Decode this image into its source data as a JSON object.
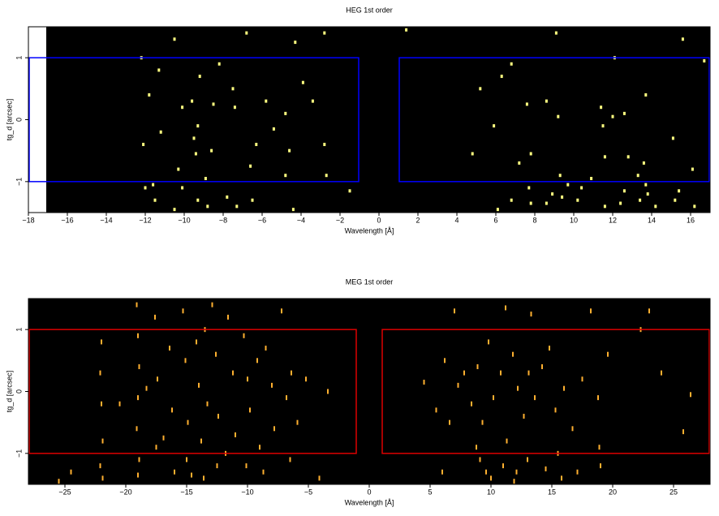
{
  "chart_data": [
    {
      "type": "scatter",
      "title": "HEG 1st order",
      "x_label": "Wavelength [Å]",
      "y_label": "tg_d [arcsec]",
      "xlim": [
        -18,
        17
      ],
      "ylim": [
        -1.5,
        1.5
      ],
      "xticks": [
        {
          "value": -18,
          "label": "−18"
        },
        {
          "value": -16,
          "label": "−16"
        },
        {
          "value": -14,
          "label": "−14"
        },
        {
          "value": -12,
          "label": "−12"
        },
        {
          "value": -10,
          "label": "−10"
        },
        {
          "value": -8,
          "label": "−8"
        },
        {
          "value": -6,
          "label": "−6"
        },
        {
          "value": -4,
          "label": "−4"
        },
        {
          "value": -2,
          "label": "−2"
        },
        0,
        2,
        4,
        6,
        8,
        10,
        12,
        14,
        16
      ],
      "yticks": [
        {
          "value": -1,
          "label": "−1"
        },
        0,
        1
      ],
      "box_color": "#0000ff",
      "boxes": [
        {
          "x": [
            -18,
            -1
          ],
          "y": [
            -1,
            1
          ]
        },
        {
          "x": [
            1,
            17
          ],
          "y": [
            -1,
            1
          ]
        }
      ],
      "series": [
        {
          "color": "#ffff80",
          "x": [
            -10.5,
            -6.8,
            -4.3,
            -2.8,
            -12.2,
            -8.2,
            -11.3,
            -9.2,
            -3.9,
            -7.5,
            -11.8,
            -9.6,
            -10.1,
            -5.8,
            -8.5,
            -3.4,
            -7.4,
            -4.8,
            -9.3,
            -11.2,
            -5.4,
            -9.5,
            -6.3,
            -12.1,
            -8.6,
            -4.6,
            -2.8,
            -9.4,
            -10.3,
            -6.6,
            -4.8,
            -2.7,
            -11.6,
            -10.1,
            -8.9,
            -1.5,
            -11.5,
            -9.3,
            -7.3,
            -4.4,
            -10.5,
            -8.8,
            -6.5,
            -12.0,
            -7.8,
            1.4,
            9.1,
            15.6,
            12.1,
            16.7,
            6.8,
            5.2,
            6.3,
            7.6,
            8.6,
            11.4,
            12.6,
            13.7,
            5.9,
            12.0,
            9.2,
            11.5,
            15.1,
            4.8,
            7.8,
            12.8,
            11.6,
            13.6,
            16.1,
            7.2,
            9.3,
            10.9,
            13.3,
            7.7,
            9.7,
            10.4,
            12.6,
            13.8,
            6.8,
            7.8,
            8.6,
            9.4,
            10.2,
            11.6,
            12.4,
            13.4,
            14.2,
            15.2,
            16.2,
            6.1,
            13.7,
            15.4,
            8.9
          ],
          "y": [
            1.3,
            1.4,
            1.25,
            1.4,
            1.0,
            0.9,
            0.8,
            0.7,
            0.6,
            0.5,
            0.4,
            0.3,
            0.2,
            0.3,
            0.25,
            0.3,
            0.2,
            0.1,
            -0.1,
            -0.2,
            -0.15,
            -0.3,
            -0.4,
            -0.4,
            -0.5,
            -0.5,
            -0.4,
            -0.55,
            -0.8,
            -0.75,
            -0.9,
            -0.9,
            -1.05,
            -1.1,
            -0.95,
            -1.15,
            -1.3,
            -1.3,
            -1.4,
            -1.45,
            -1.45,
            -1.4,
            -1.3,
            -1.1,
            -1.25,
            1.45,
            1.4,
            1.3,
            1.0,
            0.95,
            0.9,
            0.5,
            0.7,
            0.25,
            0.3,
            0.2,
            0.1,
            0.4,
            -0.1,
            0.05,
            0.05,
            -0.1,
            -0.3,
            -0.55,
            -0.55,
            -0.6,
            -0.6,
            -0.7,
            -0.8,
            -0.7,
            -0.9,
            -0.95,
            -0.9,
            -1.1,
            -1.05,
            -1.1,
            -1.15,
            -1.2,
            -1.3,
            -1.35,
            -1.35,
            -1.25,
            -1.3,
            -1.4,
            -1.35,
            -1.3,
            -1.4,
            -1.3,
            -1.4,
            -1.45,
            -1.05,
            -1.15,
            -1.2
          ]
        }
      ]
    },
    {
      "type": "scatter",
      "title": "MEG 1st order",
      "x_label": "Wavelength [Å]",
      "y_label": "tg_d [arcsec]",
      "xlim": [
        -28,
        28
      ],
      "ylim": [
        -1.5,
        1.5
      ],
      "xticks": [
        {
          "value": -25,
          "label": "−25"
        },
        {
          "value": -20,
          "label": "−20"
        },
        {
          "value": -15,
          "label": "−15"
        },
        {
          "value": -10,
          "label": "−10"
        },
        {
          "value": -5,
          "label": "−5"
        },
        0,
        5,
        10,
        15,
        20,
        25
      ],
      "yticks": [
        {
          "value": -1,
          "label": "−1"
        },
        0,
        1
      ],
      "box_color": "#dd0000",
      "boxes": [
        {
          "x": [
            -28,
            -1
          ],
          "y": [
            -1,
            1
          ]
        },
        {
          "x": [
            1,
            28
          ],
          "y": [
            -1,
            1
          ]
        }
      ],
      "series": [
        {
          "color": "#ffb030",
          "x": [
            -22.0,
            -22.1,
            -22.0,
            -21.9,
            -22.1,
            -21.9,
            -19.1,
            -19.0,
            -18.9,
            -19.0,
            -19.1,
            -18.9,
            -19.0,
            -20.5,
            -17.6,
            -17.4,
            -17.5,
            -16.4,
            -16.2,
            -16.0,
            -15.3,
            -15.1,
            -14.9,
            -15.0,
            -14.2,
            -14.0,
            -13.8,
            -13.5,
            -13.3,
            -13.6,
            -12.6,
            -12.4,
            -12.5,
            -11.6,
            -11.2,
            -11.0,
            -10.3,
            -10.0,
            -9.8,
            -10.1,
            -9.2,
            -9.0,
            -8.5,
            -8.0,
            -7.8,
            -7.2,
            -6.8,
            -6.4,
            -6.5,
            -5.9,
            -5.2,
            -4.1,
            -3.4,
            -24.5,
            -25.5,
            -18.3,
            -11.8,
            -14.6,
            -8.7,
            -12.9,
            -16.9,
            7.0,
            11.2,
            13.3,
            18.2,
            6.2,
            7.3,
            7.8,
            8.4,
            8.9,
            9.3,
            9.8,
            10.2,
            10.8,
            11.3,
            11.8,
            12.2,
            12.7,
            13.1,
            13.6,
            14.2,
            14.8,
            15.3,
            16.0,
            16.7,
            17.5,
            18.8,
            19.6,
            22.3,
            24.0,
            26.4,
            4.5,
            5.5,
            6.6,
            8.8,
            9.1,
            9.6,
            10.0,
            11.0,
            12.1,
            13.0,
            14.5,
            15.5,
            17.1,
            18.9,
            19.0,
            23.0,
            25.8,
            6.0,
            11.9,
            15.8
          ],
          "y": [
            0.8,
            0.3,
            -0.2,
            -0.8,
            -1.2,
            -1.4,
            1.4,
            0.9,
            0.4,
            -0.1,
            -0.6,
            -1.1,
            -1.35,
            -0.2,
            1.2,
            0.2,
            -0.9,
            0.7,
            -0.3,
            -1.3,
            1.3,
            0.5,
            -0.5,
            -1.1,
            0.8,
            0.1,
            -0.8,
            1.0,
            -0.2,
            -1.4,
            0.6,
            -0.4,
            -1.2,
            1.2,
            0.3,
            -0.7,
            0.9,
            0.2,
            -0.3,
            -1.2,
            0.5,
            -0.9,
            0.7,
            0.1,
            -0.6,
            1.3,
            -0.1,
            0.3,
            -1.1,
            -0.5,
            0.2,
            -1.4,
            0.0,
            -1.3,
            -1.45,
            0.05,
            -1.0,
            -1.35,
            -1.3,
            1.4,
            -0.75,
            1.3,
            1.35,
            1.25,
            1.3,
            0.5,
            0.1,
            0.3,
            -0.2,
            0.4,
            -0.5,
            0.8,
            -0.1,
            0.3,
            -0.8,
            0.6,
            0.05,
            -0.4,
            0.3,
            -0.1,
            0.4,
            0.7,
            -0.3,
            0.05,
            -0.6,
            0.2,
            -0.1,
            0.6,
            1.0,
            0.3,
            -0.05,
            0.15,
            -0.3,
            -0.5,
            -0.9,
            -1.1,
            -1.3,
            -1.4,
            -1.2,
            -1.3,
            -1.1,
            -1.25,
            -1.0,
            -1.3,
            -0.9,
            -1.2,
            1.3,
            -0.65,
            -1.3,
            -1.45,
            -1.4
          ]
        }
      ]
    }
  ]
}
